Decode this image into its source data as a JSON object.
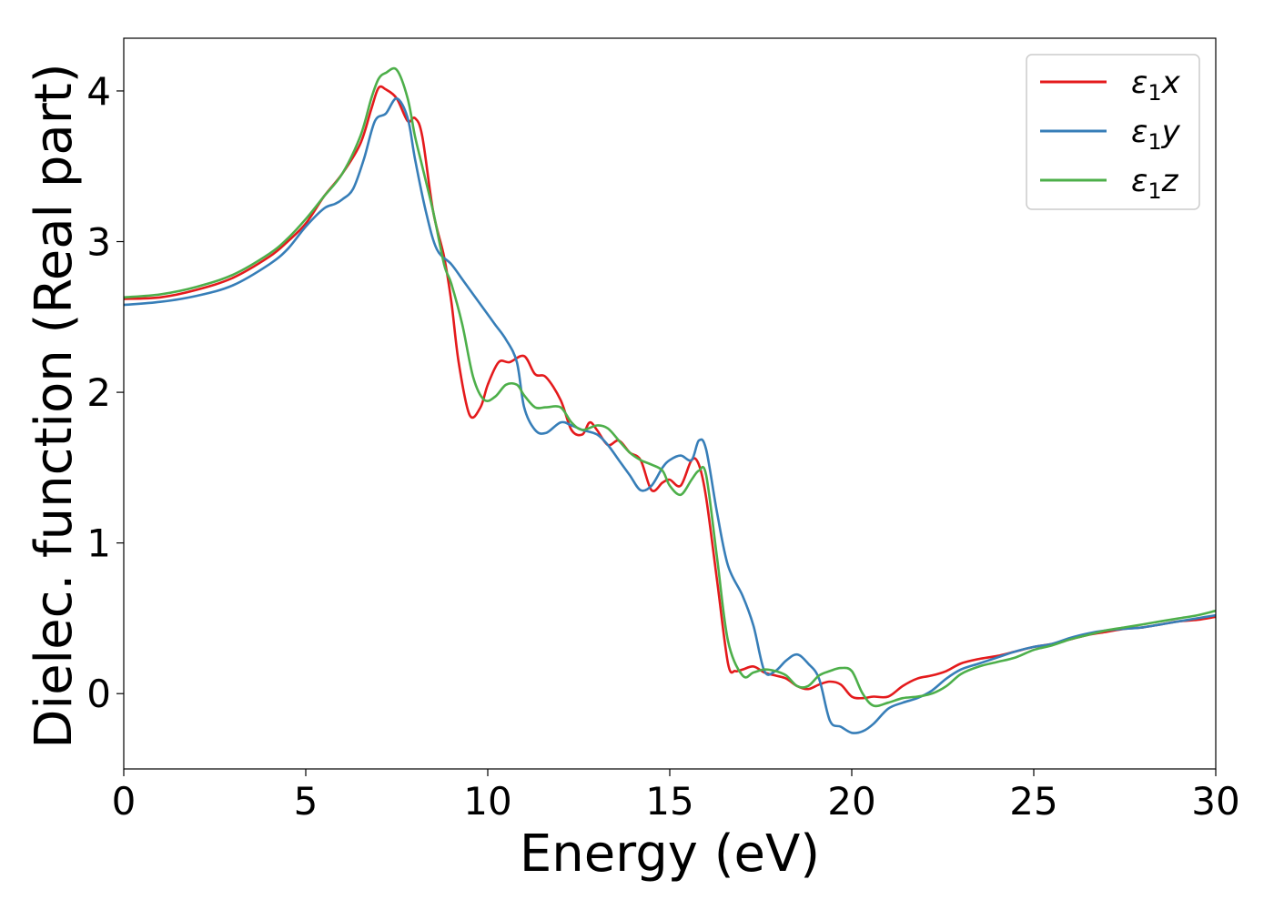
{
  "chart_data": {
    "type": "line",
    "title": "",
    "xlabel": "Energy (eV)",
    "ylabel": "Dielec. function (Real part)",
    "xlim": [
      0,
      30
    ],
    "ylim": [
      -0.5,
      4.35
    ],
    "xticks": [
      0,
      5,
      10,
      15,
      20,
      25,
      30
    ],
    "xtick_labels": [
      "0",
      "5",
      "10",
      "15",
      "20",
      "25",
      "30"
    ],
    "yticks": [
      0,
      1,
      2,
      3,
      4
    ],
    "ytick_labels": [
      "0",
      "1",
      "2",
      "3",
      "4"
    ],
    "grid": false,
    "legend_position": "top-right",
    "legend": [
      {
        "label": "ε",
        "sub": "1",
        "axis": "x"
      },
      {
        "label": "ε",
        "sub": "1",
        "axis": "y"
      },
      {
        "label": "ε",
        "sub": "1",
        "axis": "z"
      }
    ],
    "series": [
      {
        "name": "ε1x",
        "color": "#e41a1c",
        "x": [
          0,
          1,
          2,
          3,
          4,
          4.5,
          5,
          5.5,
          6,
          6.5,
          6.8,
          7,
          7.2,
          7.5,
          7.8,
          8,
          8.2,
          8.5,
          8.8,
          9,
          9.2,
          9.5,
          9.8,
          10,
          10.3,
          10.6,
          11,
          11.3,
          11.6,
          12,
          12.3,
          12.6,
          12.8,
          13,
          13.3,
          13.6,
          13.9,
          14.2,
          14.5,
          14.8,
          15,
          15.3,
          15.6,
          15.8,
          16,
          16.3,
          16.6,
          16.8,
          17,
          17.3,
          17.6,
          17.9,
          18.2,
          18.5,
          18.8,
          19.1,
          19.4,
          19.7,
          20,
          20.3,
          20.6,
          21,
          21.4,
          21.8,
          22.2,
          22.6,
          23,
          23.5,
          24,
          24.5,
          25,
          25.5,
          26,
          26.5,
          27,
          27.5,
          28,
          28.5,
          29,
          29.5,
          30
        ],
        "y": [
          2.62,
          2.63,
          2.68,
          2.76,
          2.9,
          3.0,
          3.12,
          3.3,
          3.45,
          3.65,
          3.88,
          4.02,
          4.01,
          3.95,
          3.8,
          3.82,
          3.7,
          3.2,
          2.9,
          2.6,
          2.2,
          1.85,
          1.9,
          2.05,
          2.2,
          2.2,
          2.24,
          2.12,
          2.1,
          1.95,
          1.75,
          1.72,
          1.8,
          1.75,
          1.65,
          1.68,
          1.6,
          1.55,
          1.35,
          1.4,
          1.42,
          1.38,
          1.55,
          1.52,
          1.3,
          0.75,
          0.2,
          0.15,
          0.16,
          0.18,
          0.14,
          0.12,
          0.1,
          0.05,
          0.03,
          0.06,
          0.08,
          0.06,
          -0.02,
          -0.03,
          -0.02,
          -0.02,
          0.05,
          0.1,
          0.12,
          0.15,
          0.2,
          0.23,
          0.25,
          0.28,
          0.31,
          0.33,
          0.36,
          0.39,
          0.41,
          0.43,
          0.44,
          0.46,
          0.48,
          0.49,
          0.51
        ]
      },
      {
        "name": "ε1y",
        "color": "#377eb8",
        "x": [
          0,
          1,
          2,
          3,
          4,
          4.5,
          5,
          5.5,
          5.8,
          6,
          6.3,
          6.6,
          6.9,
          7.2,
          7.5,
          7.8,
          8,
          8.3,
          8.6,
          9,
          9.3,
          9.6,
          9.9,
          10.2,
          10.5,
          10.8,
          11,
          11.3,
          11.6,
          12,
          12.3,
          12.6,
          13,
          13.3,
          13.6,
          13.9,
          14.2,
          14.5,
          14.8,
          15,
          15.3,
          15.6,
          15.8,
          16,
          16.3,
          16.6,
          17,
          17.3,
          17.6,
          17.9,
          18.2,
          18.5,
          18.8,
          19.1,
          19.4,
          19.7,
          20,
          20.3,
          20.6,
          21,
          21.4,
          21.8,
          22.2,
          22.6,
          23,
          23.5,
          24,
          24.5,
          25,
          25.5,
          26,
          26.5,
          27,
          27.5,
          28,
          28.5,
          29,
          29.5,
          30
        ],
        "y": [
          2.58,
          2.6,
          2.64,
          2.71,
          2.85,
          2.95,
          3.1,
          3.22,
          3.25,
          3.28,
          3.35,
          3.55,
          3.8,
          3.85,
          3.95,
          3.82,
          3.55,
          3.2,
          2.95,
          2.85,
          2.75,
          2.65,
          2.55,
          2.45,
          2.35,
          2.2,
          1.9,
          1.75,
          1.73,
          1.8,
          1.78,
          1.75,
          1.72,
          1.65,
          1.55,
          1.45,
          1.35,
          1.38,
          1.5,
          1.55,
          1.58,
          1.55,
          1.68,
          1.62,
          1.2,
          0.85,
          0.65,
          0.45,
          0.15,
          0.15,
          0.22,
          0.26,
          0.2,
          0.1,
          -0.18,
          -0.22,
          -0.26,
          -0.25,
          -0.2,
          -0.1,
          -0.06,
          -0.03,
          0.02,
          0.1,
          0.16,
          0.2,
          0.24,
          0.28,
          0.31,
          0.33,
          0.37,
          0.4,
          0.42,
          0.43,
          0.44,
          0.46,
          0.48,
          0.5,
          0.52
        ]
      },
      {
        "name": "ε1z",
        "color": "#4daf4a",
        "x": [
          0,
          1,
          2,
          3,
          4,
          4.5,
          5,
          5.5,
          6,
          6.5,
          6.8,
          7,
          7.2,
          7.5,
          7.8,
          8,
          8.2,
          8.5,
          8.8,
          9,
          9.3,
          9.6,
          9.9,
          10.2,
          10.5,
          10.8,
          11,
          11.3,
          11.6,
          12,
          12.3,
          12.6,
          13,
          13.3,
          13.6,
          13.9,
          14.2,
          14.5,
          14.8,
          15,
          15.3,
          15.6,
          15.8,
          16,
          16.3,
          16.6,
          17,
          17.3,
          17.6,
          17.9,
          18.2,
          18.5,
          18.8,
          19.1,
          19.4,
          19.7,
          20,
          20.3,
          20.6,
          21,
          21.4,
          21.8,
          22.2,
          22.6,
          23,
          23.5,
          24,
          24.5,
          25,
          25.5,
          26,
          26.5,
          27,
          27.5,
          28,
          28.5,
          29,
          29.5,
          30
        ],
        "y": [
          2.63,
          2.65,
          2.7,
          2.78,
          2.92,
          3.02,
          3.15,
          3.3,
          3.45,
          3.7,
          3.95,
          4.08,
          4.12,
          4.14,
          3.95,
          3.7,
          3.5,
          3.2,
          2.85,
          2.72,
          2.45,
          2.1,
          1.95,
          1.97,
          2.05,
          2.05,
          1.98,
          1.9,
          1.9,
          1.9,
          1.8,
          1.75,
          1.78,
          1.76,
          1.68,
          1.6,
          1.55,
          1.52,
          1.48,
          1.38,
          1.32,
          1.42,
          1.48,
          1.45,
          0.9,
          0.35,
          0.12,
          0.14,
          0.16,
          0.15,
          0.12,
          0.05,
          0.05,
          0.12,
          0.15,
          0.17,
          0.15,
          0.0,
          -0.08,
          -0.06,
          -0.03,
          -0.02,
          0.0,
          0.05,
          0.13,
          0.18,
          0.21,
          0.24,
          0.29,
          0.32,
          0.36,
          0.39,
          0.42,
          0.44,
          0.46,
          0.48,
          0.5,
          0.52,
          0.55
        ]
      }
    ]
  }
}
